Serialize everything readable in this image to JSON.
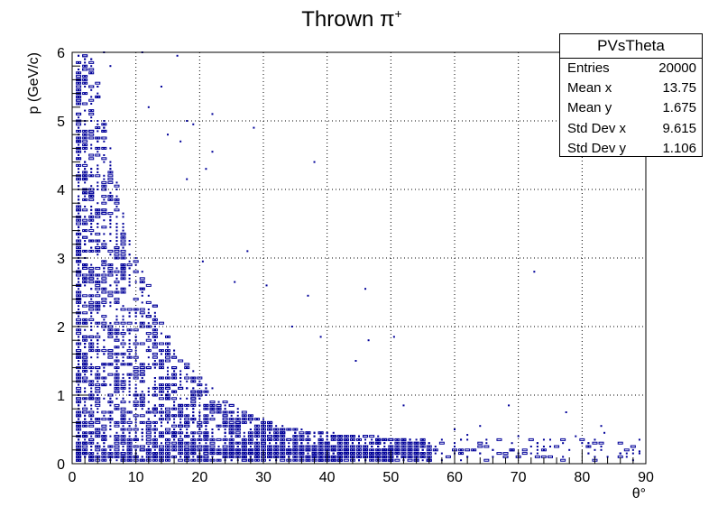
{
  "chart_data": {
    "type": "scatter",
    "title": "Thrown π",
    "title_superscript": "+",
    "xlabel": "θ°",
    "ylabel": "p (GeV/c)",
    "xlim": [
      0,
      90
    ],
    "ylim": [
      0,
      6
    ],
    "x_ticks": [
      "0",
      "10",
      "20",
      "30",
      "40",
      "50",
      "60",
      "70",
      "80",
      "90"
    ],
    "y_ticks": [
      "0",
      "1",
      "2",
      "3",
      "4",
      "5",
      "6"
    ],
    "grid": true,
    "marker_color": "#000099",
    "representative_points": [
      [
        2,
        5.6
      ],
      [
        3,
        5.9
      ],
      [
        5,
        6.0
      ],
      [
        6,
        5.8
      ],
      [
        11,
        6.0
      ],
      [
        14,
        5.5
      ],
      [
        16.5,
        5.95
      ],
      [
        12,
        5.2
      ],
      [
        15,
        4.8
      ],
      [
        17,
        4.7
      ],
      [
        18,
        5.0
      ],
      [
        19,
        4.95
      ],
      [
        22,
        5.1
      ],
      [
        22,
        4.55
      ],
      [
        21,
        4.3
      ],
      [
        28.5,
        4.9
      ],
      [
        38,
        4.4
      ],
      [
        18,
        4.15
      ],
      [
        27.5,
        3.1
      ],
      [
        20.5,
        2.95
      ],
      [
        25.5,
        2.65
      ],
      [
        30.5,
        2.6
      ],
      [
        34.5,
        2.0
      ],
      [
        37,
        2.45
      ],
      [
        39,
        1.85
      ],
      [
        44.5,
        1.5
      ],
      [
        46,
        2.55
      ],
      [
        46.5,
        1.8
      ],
      [
        50.5,
        1.85
      ],
      [
        72.5,
        2.8
      ],
      [
        52,
        0.85
      ],
      [
        60,
        0.5
      ],
      [
        62,
        0.42
      ],
      [
        64,
        0.55
      ],
      [
        68.5,
        0.85
      ],
      [
        70,
        0.4
      ],
      [
        73,
        0.3
      ],
      [
        77.5,
        0.75
      ],
      [
        79,
        0.4
      ],
      [
        83,
        0.55
      ],
      [
        83.5,
        0.45
      ],
      [
        86,
        0.15
      ],
      [
        89,
        0.18
      ],
      [
        66,
        0.2
      ],
      [
        75,
        0.25
      ]
    ]
  },
  "stats_box": {
    "title": "PVsTheta",
    "rows": [
      {
        "label": "Entries",
        "value": "20000"
      },
      {
        "label": "Mean x",
        "value": "13.75"
      },
      {
        "label": "Mean y",
        "value": "1.675"
      },
      {
        "label": "Std Dev x",
        "value": "9.615"
      },
      {
        "label": "Std Dev y",
        "value": "1.106"
      }
    ]
  }
}
